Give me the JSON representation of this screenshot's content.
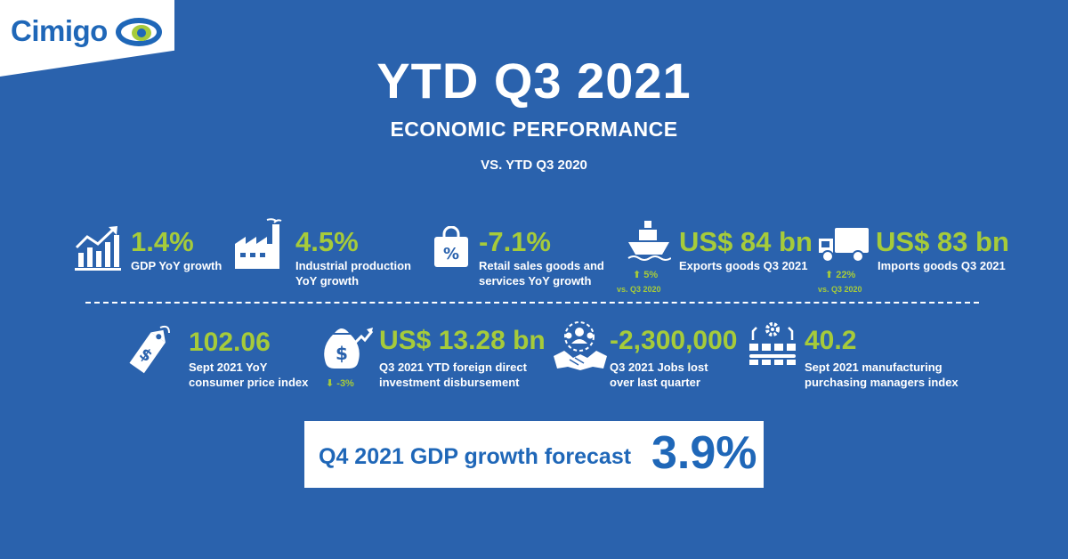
{
  "brand": {
    "name": "Cimigo",
    "colors": {
      "background": "#2a62ad",
      "accent": "#a6cb3a",
      "brand_blue": "#1f67b8",
      "white": "#ffffff"
    }
  },
  "header": {
    "title": "YTD Q3 2021",
    "subtitle": "ECONOMIC PERFORMANCE",
    "comparison": "VS. YTD Q3 2020"
  },
  "row1": [
    {
      "icon": "bar-chart-growth-icon",
      "value": "1.4%",
      "label_lines": [
        "GDP YoY growth"
      ]
    },
    {
      "icon": "factory-icon",
      "value": "4.5%",
      "label_lines": [
        "Industrial production",
        "YoY growth"
      ]
    },
    {
      "icon": "shopping-bag-percent-icon",
      "value": "-7.1%",
      "label_lines": [
        "Retail sales goods and",
        "services YoY growth"
      ]
    },
    {
      "icon": "cargo-ship-icon",
      "value": "US$ 84 bn",
      "label_lines": [
        "Exports goods Q3 2021"
      ],
      "change": "5%",
      "change_note": "vs. Q3 2020",
      "change_direction": "up"
    },
    {
      "icon": "delivery-truck-icon",
      "value": "US$ 83 bn",
      "label_lines": [
        "Imports goods Q3 2021"
      ],
      "change": "22%",
      "change_note": "vs. Q3 2020",
      "change_direction": "up"
    }
  ],
  "row2": [
    {
      "icon": "price-tag-dollar-icon",
      "value": "102.06",
      "label_lines": [
        "Sept 2021 YoY",
        "consumer price index"
      ]
    },
    {
      "icon": "money-bag-icon",
      "value": "US$ 13.28 bn",
      "label_lines": [
        "Q3 2021 YTD foreign direct",
        "investment disbursement"
      ],
      "change": "-3%",
      "change_direction": "down"
    },
    {
      "icon": "people-handshake-icon",
      "value": "-2,300,000",
      "label_lines": [
        "Q3 2021 Jobs lost",
        "over last quarter"
      ]
    },
    {
      "icon": "manufacturing-gears-icon",
      "value": "40.2",
      "label_lines": [
        "Sept 2021 manufacturing",
        "purchasing managers index"
      ]
    }
  ],
  "forecast": {
    "label": "Q4 2021 GDP growth forecast",
    "value": "3.9%"
  }
}
